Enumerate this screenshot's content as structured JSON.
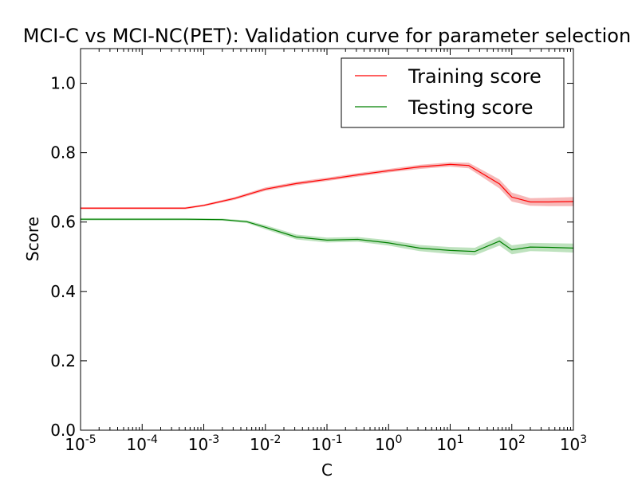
{
  "chart_data": {
    "type": "line",
    "title": "MCI-C vs MCI-NC(PET): Validation curve for parameter selection",
    "xlabel": "C",
    "ylabel": "Score",
    "xscale": "log",
    "xlim_exp": [
      -5,
      3
    ],
    "ylim": [
      0.0,
      1.1
    ],
    "x_tick_exponents": [
      -5,
      -4,
      -3,
      -2,
      -1,
      0,
      1,
      2,
      3
    ],
    "x_tick_base": "10",
    "x_tick_labels": [
      "10-5",
      "10-4",
      "10-3",
      "10-2",
      "10-1",
      "100",
      "101",
      "102",
      "103"
    ],
    "y_ticks": [
      0.0,
      0.2,
      0.4,
      0.6,
      0.8,
      1.0
    ],
    "y_tick_labels": [
      "0.0",
      "0.2",
      "0.4",
      "0.6",
      "0.8",
      "1.0"
    ],
    "legend_position": "top-right",
    "series": [
      {
        "name": "Training score",
        "color": "#ff0000",
        "band_color": "#f4a0a0",
        "log10_x": [
          -5,
          -4,
          -3.3,
          -3,
          -2.5,
          -2,
          -1.5,
          -1,
          -0.5,
          0,
          0.5,
          1,
          1.3,
          1.5,
          1.8,
          2,
          2.3,
          2.6,
          3
        ],
        "values": [
          0.64,
          0.64,
          0.64,
          0.648,
          0.668,
          0.695,
          0.711,
          0.723,
          0.736,
          0.748,
          0.759,
          0.766,
          0.763,
          0.742,
          0.71,
          0.672,
          0.658,
          0.658,
          0.659
        ],
        "spread": [
          0.003,
          0.003,
          0.003,
          0.003,
          0.004,
          0.005,
          0.005,
          0.005,
          0.005,
          0.005,
          0.006,
          0.006,
          0.008,
          0.01,
          0.013,
          0.013,
          0.011,
          0.012,
          0.013
        ]
      },
      {
        "name": "Testing score",
        "color": "#008000",
        "band_color": "#a8d8a8",
        "log10_x": [
          -5,
          -4,
          -3.3,
          -2.7,
          -2.3,
          -2,
          -1.5,
          -1,
          -0.5,
          0,
          0.5,
          1,
          1.4,
          1.6,
          1.8,
          2,
          2.3,
          2.6,
          3
        ],
        "values": [
          0.608,
          0.608,
          0.608,
          0.607,
          0.601,
          0.585,
          0.557,
          0.548,
          0.55,
          0.54,
          0.525,
          0.518,
          0.515,
          0.53,
          0.545,
          0.52,
          0.528,
          0.527,
          0.525
        ],
        "spread": [
          0.003,
          0.003,
          0.003,
          0.003,
          0.004,
          0.006,
          0.007,
          0.007,
          0.007,
          0.008,
          0.009,
          0.01,
          0.011,
          0.012,
          0.013,
          0.013,
          0.012,
          0.012,
          0.013
        ]
      }
    ]
  }
}
